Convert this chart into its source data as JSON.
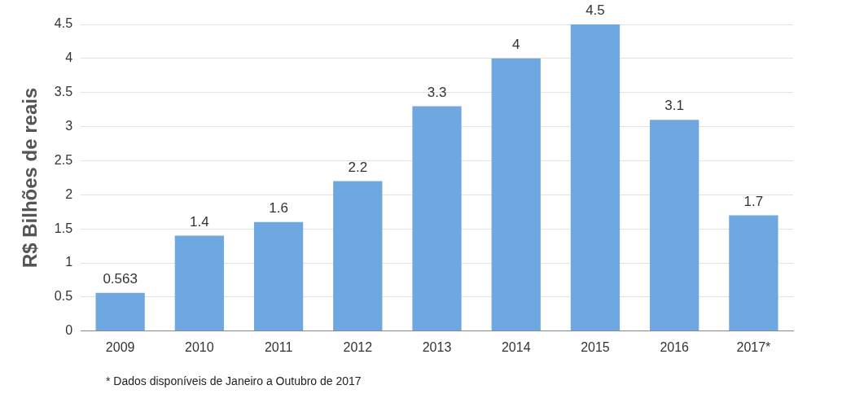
{
  "chart_data": {
    "type": "bar",
    "ylabel": "R$ Bilhões de reais",
    "categories": [
      "2009",
      "2010",
      "2011",
      "2012",
      "2013",
      "2014",
      "2015",
      "2016",
      "2017*"
    ],
    "values": [
      0.563,
      1.4,
      1.6,
      2.2,
      3.3,
      4,
      4.5,
      3.1,
      1.7
    ],
    "color": "#6fa8e0",
    "ylim": [
      0,
      4.5
    ],
    "yticks": [
      0,
      0.5,
      1,
      1.5,
      2,
      2.5,
      3,
      3.5,
      4,
      4.5
    ],
    "grid": "y",
    "data_labels": true,
    "legend": false,
    "annotations": [
      "* Dados disponíveis  de Janeiro a Outubro de 2017"
    ]
  }
}
